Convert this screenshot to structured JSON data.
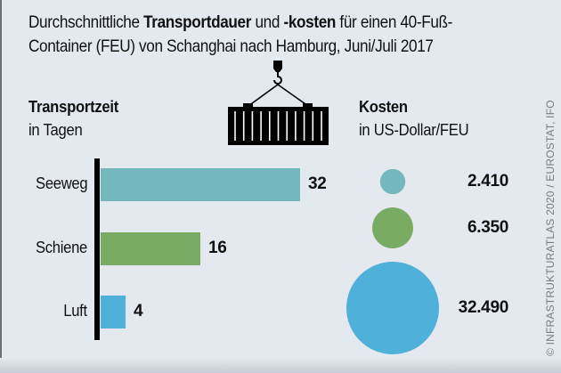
{
  "title": {
    "part1": "Durchschnittliche ",
    "bold1": "Transportdauer",
    "part2": " und ",
    "bold2": "-kosten",
    "part3": " für einen 40-Fuß-",
    "line2": "Container (FEU) von Schanghai nach Hamburg, Juni/Juli 2017"
  },
  "icon": "shipping-container-crane-icon",
  "credit": "© INFRASTRUKTURATLAS 2020 / EUROSTAT, IFO",
  "colors": {
    "background": "#e4e9f0",
    "seeweg": "#72b8bd",
    "schiene": "#7aab62",
    "luft": "#4fb0da",
    "axis": "#000000"
  },
  "chart_data": [
    {
      "type": "bar",
      "orientation": "horizontal",
      "title": "Transportzeit",
      "subtitle": "in Tagen",
      "categories": [
        "Seeweg",
        "Schiene",
        "Luft"
      ],
      "values": [
        32,
        16,
        4
      ],
      "value_labels": [
        "32",
        "16",
        "4"
      ],
      "xlim": [
        0,
        32
      ],
      "grid": false
    },
    {
      "type": "bubble",
      "title": "Kosten",
      "subtitle": "in US-Dollar/FEU",
      "categories": [
        "Seeweg",
        "Schiene",
        "Luft"
      ],
      "values": [
        2410,
        6350,
        32490
      ],
      "value_labels": [
        "2.410",
        "6.350",
        "32.490"
      ],
      "size_encoding": "area"
    }
  ]
}
